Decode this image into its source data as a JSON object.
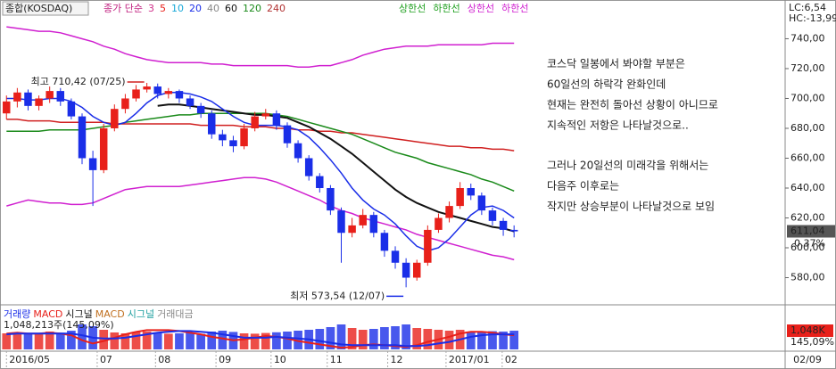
{
  "chart_data": [
    {
      "type": "candlestick",
      "title": "종합(KOSDAQ)",
      "ma_legend_title": "종가 단순",
      "ma_legend": [
        {
          "label": "3",
          "color": "#d0308a"
        },
        {
          "label": "5",
          "color": "#e8201a"
        },
        {
          "label": "10",
          "color": "#18a8d8"
        },
        {
          "label": "20",
          "color": "#1a2ee8"
        },
        {
          "label": "40",
          "color": "#888888"
        },
        {
          "label": "60",
          "color": "#111111"
        },
        {
          "label": "120",
          "color": "#1a8a1a"
        },
        {
          "label": "240",
          "color": "#b03030"
        }
      ],
      "band_legend": [
        {
          "label": "상한선",
          "color": "#20a020"
        },
        {
          "label": "하한선",
          "color": "#20a020"
        },
        {
          "label": "상한선",
          "color": "#d020d0"
        },
        {
          "label": "하한선",
          "color": "#d020d0"
        }
      ],
      "corner_labels": [
        "LC:6,54",
        "HC:-13,99"
      ],
      "open": [
        690,
        698,
        704,
        695,
        700,
        705,
        698,
        688,
        660,
        652,
        680,
        693,
        700,
        706,
        708,
        703,
        705,
        700,
        695,
        690,
        676,
        672,
        668,
        680,
        688,
        690,
        682,
        670,
        660,
        648,
        640,
        625,
        610,
        615,
        622,
        610,
        598,
        590,
        580,
        590,
        612,
        620,
        628,
        640,
        635,
        625,
        618,
        612
      ],
      "high": [
        702,
        707,
        706,
        702,
        708,
        707,
        700,
        690,
        665,
        683,
        696,
        703,
        709,
        710.42,
        710,
        707,
        706,
        702,
        697,
        692,
        679,
        675,
        683,
        691,
        693,
        692,
        684,
        672,
        662,
        650,
        642,
        627,
        620,
        626,
        624,
        612,
        601,
        593,
        592,
        615,
        623,
        631,
        644,
        643,
        637,
        627,
        620,
        615
      ],
      "low": [
        686,
        694,
        692,
        692,
        697,
        695,
        686,
        656,
        628,
        650,
        678,
        690,
        698,
        704,
        700,
        700,
        697,
        693,
        687,
        673,
        668,
        664,
        666,
        678,
        686,
        679,
        667,
        657,
        645,
        637,
        622,
        590,
        607,
        613,
        607,
        594,
        586,
        573.54,
        578,
        588,
        610,
        617,
        626,
        632,
        622,
        615,
        608,
        607
      ],
      "close": [
        698,
        704,
        695,
        700,
        705,
        698,
        688,
        660,
        652,
        680,
        693,
        700,
        706,
        708,
        703,
        705,
        700,
        695,
        690,
        676,
        672,
        668,
        680,
        688,
        690,
        682,
        670,
        660,
        648,
        640,
        625,
        610,
        615,
        622,
        610,
        598,
        590,
        580,
        590,
        612,
        620,
        628,
        640,
        635,
        625,
        618,
        612,
        611
      ],
      "up_color": "#e8201a",
      "down_color": "#1a2ee8",
      "series": [
        {
          "color": "#d020d0",
          "values": [
            748,
            747,
            746,
            745,
            745,
            744,
            742,
            740,
            738,
            735,
            733,
            730,
            728,
            726,
            725,
            724,
            724,
            724,
            724,
            723,
            723,
            722,
            722,
            722,
            722,
            722,
            722,
            721,
            721,
            722,
            722,
            724,
            726,
            729,
            731,
            733,
            734,
            735,
            735,
            735,
            736,
            736,
            736,
            736,
            736,
            737,
            737,
            737
          ]
        },
        {
          "color": "#d020d0",
          "values": [
            628,
            630,
            632,
            631,
            630,
            630,
            629,
            629,
            630,
            633,
            636,
            639,
            640,
            641,
            641,
            641,
            641,
            642,
            643,
            644,
            645,
            646,
            647,
            647,
            646,
            644,
            641,
            638,
            635,
            632,
            628,
            625,
            623,
            620,
            618,
            616,
            614,
            612,
            609,
            607,
            605,
            603,
            601,
            599,
            597,
            595,
            594,
            592
          ]
        },
        {
          "color": "#d02020",
          "values": [
            686,
            686,
            685,
            685,
            685,
            684,
            684,
            684,
            684,
            684,
            683,
            683,
            683,
            683,
            683,
            683,
            683,
            683,
            682,
            682,
            682,
            682,
            681,
            681,
            681,
            680,
            680,
            679,
            679,
            678,
            678,
            677,
            677,
            676,
            675,
            674,
            673,
            672,
            671,
            670,
            669,
            668,
            668,
            667,
            667,
            666,
            666,
            665
          ]
        },
        {
          "color": "#1a8a1a",
          "values": [
            678,
            678,
            678,
            678,
            679,
            679,
            679,
            679,
            680,
            681,
            682,
            684,
            685,
            686,
            687,
            688,
            689,
            689,
            690,
            690,
            690,
            690,
            690,
            690,
            690,
            689,
            688,
            686,
            684,
            682,
            680,
            678,
            676,
            673,
            670,
            667,
            664,
            662,
            660,
            657,
            655,
            653,
            651,
            649,
            646,
            644,
            641,
            638
          ]
        },
        {
          "color": "#111111",
          "values": [
            null,
            null,
            null,
            null,
            null,
            null,
            null,
            null,
            null,
            null,
            null,
            null,
            null,
            null,
            695,
            696,
            696,
            695,
            694,
            693,
            692,
            691,
            690,
            689,
            689,
            688,
            687,
            684,
            681,
            677,
            673,
            668,
            663,
            657,
            651,
            645,
            639,
            634,
            630,
            627,
            624,
            622,
            620,
            618,
            616,
            614,
            613,
            611
          ]
        },
        {
          "color": "#1a2ee8",
          "values": [
            700,
            700,
            699,
            699,
            700,
            700,
            698,
            694,
            688,
            684,
            682,
            684,
            690,
            697,
            702,
            704,
            704,
            703,
            701,
            698,
            693,
            688,
            684,
            682,
            682,
            682,
            681,
            679,
            674,
            667,
            659,
            650,
            640,
            632,
            626,
            622,
            616,
            608,
            601,
            598,
            600,
            606,
            614,
            622,
            627,
            628,
            625,
            620
          ]
        }
      ],
      "xlim": [
        -0.6,
        72.1
      ],
      "xticks": [
        {
          "value": 0,
          "label": "2016/05"
        },
        {
          "value": 8.4,
          "label": "07"
        },
        {
          "value": 13.8,
          "label": "08"
        },
        {
          "value": 19.4,
          "label": "09"
        },
        {
          "value": 24.5,
          "label": "10"
        },
        {
          "value": 29.7,
          "label": "11"
        },
        {
          "value": 35.3,
          "label": "12"
        },
        {
          "value": 40.7,
          "label": "2017/01"
        },
        {
          "value": 45.9,
          "label": "02"
        }
      ],
      "date_label": "02/09",
      "ylim": [
        563,
        754
      ],
      "yticks": [
        {
          "value": 580,
          "label": "580,00"
        },
        {
          "value": 600,
          "label": "600,00"
        },
        {
          "value": 620,
          "label": "620,00"
        },
        {
          "value": 640,
          "label": "640,00"
        },
        {
          "value": 660,
          "label": "660,00"
        },
        {
          "value": 680,
          "label": "680,00"
        },
        {
          "value": 700,
          "label": "700,00"
        },
        {
          "value": 720,
          "label": "720,00"
        },
        {
          "value": 740,
          "label": "740,00"
        }
      ],
      "last_price": {
        "value": 611.04,
        "label": "611,04"
      },
      "change_label": "0,37%",
      "annotations": [
        {
          "label": "최고 710,42 (07/25)",
          "value": 710.42,
          "kind": "high",
          "color": "#d02020"
        },
        {
          "label": "최저 573,54 (12/07)",
          "value": 573.54,
          "kind": "low",
          "color": "#1a2ee8"
        }
      ],
      "notes": [
        [
          "코스닥 일봉에서 봐야할 부분은",
          "60일선의 하락각 완화인데",
          "현재는 완전히 돌아선 상황이 아니므로",
          "지속적인 저항은 나타날것으로.."
        ],
        [
          "그러나 20일선의 미래각을 위해서는",
          "다음주 이후로는",
          "작지만 상승부분이 나타날것으로 보임"
        ]
      ]
    },
    {
      "type": "volume-macd",
      "legend": [
        {
          "label": "거래량",
          "color": "#1a2ee8"
        },
        {
          "label": "MACD",
          "color": "#e8201a"
        },
        {
          "label": "시그널",
          "color": "#111111"
        },
        {
          "label": "MACD",
          "color": "#c07020"
        },
        {
          "label": "시그널",
          "color": "#20a0a0"
        },
        {
          "label": "거래대금",
          "color": "#888888"
        }
      ],
      "info": "1,048,213주(145,09%)",
      "values": [
        900,
        950,
        880,
        920,
        1000,
        940,
        1050,
        1400,
        1300,
        1100,
        950,
        900,
        980,
        1000,
        920,
        880,
        900,
        950,
        870,
        1000,
        1050,
        980,
        900,
        880,
        920,
        960,
        1000,
        1050,
        1100,
        1150,
        1250,
        1400,
        1200,
        1100,
        1150,
        1250,
        1300,
        1400,
        1200,
        1150,
        1100,
        1050,
        1100,
        1000,
        980,
        1020,
        1000,
        1048.213
      ],
      "ylim": [
        0,
        1500
      ],
      "yticks": [
        {
          "value": 1048.213,
          "label": "1,048K"
        }
      ],
      "ratio_label": "145,09%",
      "series": [
        {
          "color": "#e8201a",
          "axis": "y2",
          "values": [
            3,
            4,
            3,
            3,
            4,
            3,
            1,
            -5,
            -9,
            -6,
            -2,
            2,
            5,
            7,
            7,
            7,
            6,
            4,
            2,
            -1,
            -3,
            -5,
            -4,
            -2,
            0,
            -1,
            -3,
            -6,
            -8,
            -10,
            -12,
            -14,
            -13,
            -11,
            -10,
            -11,
            -12,
            -13,
            -11,
            -7,
            -4,
            -1,
            3,
            5,
            5,
            4,
            2,
            1
          ]
        },
        {
          "color": "#1a2ee8",
          "axis": "y2",
          "values": [
            2,
            3,
            3,
            3,
            3,
            3,
            3,
            1,
            -2,
            -3,
            -3,
            -2,
            0,
            2,
            4,
            5,
            6,
            6,
            5,
            4,
            2,
            0,
            -2,
            -2,
            -2,
            -1,
            -2,
            -3,
            -4,
            -6,
            -8,
            -10,
            -11,
            -11,
            -11,
            -11,
            -11,
            -12,
            -12,
            -11,
            -9,
            -7,
            -4,
            -1,
            1,
            2,
            2,
            2
          ]
        }
      ],
      "y2lim": [
        -16,
        16
      ]
    }
  ]
}
